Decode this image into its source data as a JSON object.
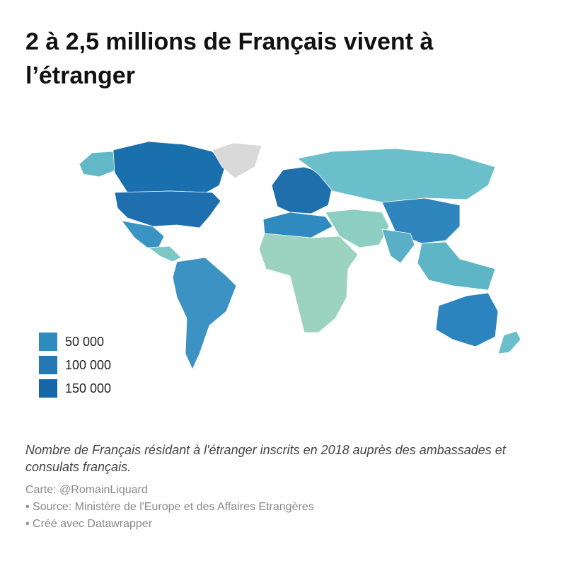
{
  "title": [
    "2 à 2,5 millions de Français vivent à",
    "l’étranger"
  ],
  "legend": [
    {
      "value": 50000,
      "label": "50 000",
      "color": "#2e8bc0"
    },
    {
      "value": 100000,
      "label": "100 000",
      "color": "#2479b5"
    },
    {
      "value": 150000,
      "label": "150 000",
      "color": "#1667aa"
    }
  ],
  "description": "Nombre de Français résidant à l'étranger inscrits en 2018 auprès des ambassades et consulats français.",
  "credits": [
    "Carte: @RomainLiquard",
    "• Source: Ministère de l'Europe et des Affaires Etrangères",
    "• Créé avec Datawrapper"
  ]
}
